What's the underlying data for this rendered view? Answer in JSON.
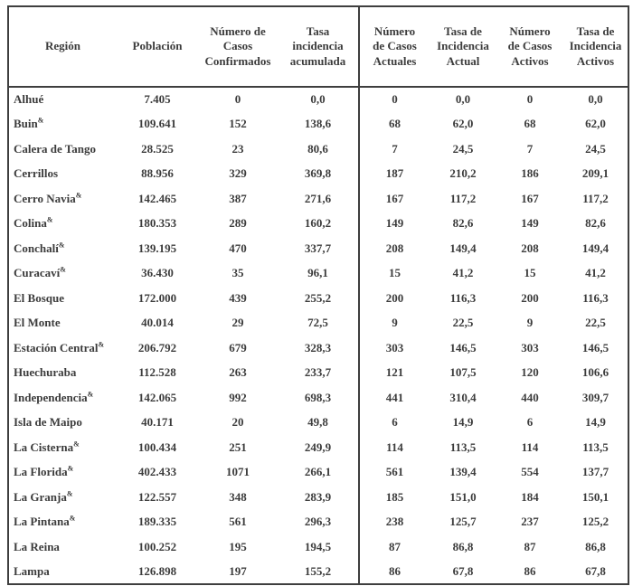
{
  "table": {
    "headers": [
      "Región",
      "Población",
      "Número de\nCasos\nConfirmados",
      "Tasa\nincidencia\nacumulada",
      "Número\nde Casos\nActuales",
      "Tasa de\nIncidencia\nActual",
      "Número\nde Casos\nActivos",
      "Tasa de\nIncidencia\nActivos"
    ],
    "rows": [
      {
        "region": "Alhué",
        "sup": "",
        "poblacion": "7.405",
        "confirmados": "0",
        "tasa_acumulada": "0,0",
        "actuales": "0",
        "tasa_actual": "0,0",
        "activos": "0",
        "tasa_activos": "0,0"
      },
      {
        "region": "Buin",
        "sup": "&",
        "poblacion": "109.641",
        "confirmados": "152",
        "tasa_acumulada": "138,6",
        "actuales": "68",
        "tasa_actual": "62,0",
        "activos": "68",
        "tasa_activos": "62,0"
      },
      {
        "region": "Calera de Tango",
        "sup": "",
        "poblacion": "28.525",
        "confirmados": "23",
        "tasa_acumulada": "80,6",
        "actuales": "7",
        "tasa_actual": "24,5",
        "activos": "7",
        "tasa_activos": "24,5"
      },
      {
        "region": "Cerrillos",
        "sup": "",
        "poblacion": "88.956",
        "confirmados": "329",
        "tasa_acumulada": "369,8",
        "actuales": "187",
        "tasa_actual": "210,2",
        "activos": "186",
        "tasa_activos": "209,1"
      },
      {
        "region": "Cerro Navia",
        "sup": "&",
        "poblacion": "142.465",
        "confirmados": "387",
        "tasa_acumulada": "271,6",
        "actuales": "167",
        "tasa_actual": "117,2",
        "activos": "167",
        "tasa_activos": "117,2"
      },
      {
        "region": "Colina",
        "sup": "&",
        "poblacion": "180.353",
        "confirmados": "289",
        "tasa_acumulada": "160,2",
        "actuales": "149",
        "tasa_actual": "82,6",
        "activos": "149",
        "tasa_activos": "82,6"
      },
      {
        "region": "Conchalí",
        "sup": "&",
        "poblacion": "139.195",
        "confirmados": "470",
        "tasa_acumulada": "337,7",
        "actuales": "208",
        "tasa_actual": "149,4",
        "activos": "208",
        "tasa_activos": "149,4"
      },
      {
        "region": "Curacaví",
        "sup": "&",
        "poblacion": "36.430",
        "confirmados": "35",
        "tasa_acumulada": "96,1",
        "actuales": "15",
        "tasa_actual": "41,2",
        "activos": "15",
        "tasa_activos": "41,2"
      },
      {
        "region": "El Bosque",
        "sup": "",
        "poblacion": "172.000",
        "confirmados": "439",
        "tasa_acumulada": "255,2",
        "actuales": "200",
        "tasa_actual": "116,3",
        "activos": "200",
        "tasa_activos": "116,3"
      },
      {
        "region": "El Monte",
        "sup": "",
        "poblacion": "40.014",
        "confirmados": "29",
        "tasa_acumulada": "72,5",
        "actuales": "9",
        "tasa_actual": "22,5",
        "activos": "9",
        "tasa_activos": "22,5"
      },
      {
        "region": "Estación Central",
        "sup": "&",
        "poblacion": "206.792",
        "confirmados": "679",
        "tasa_acumulada": "328,3",
        "actuales": "303",
        "tasa_actual": "146,5",
        "activos": "303",
        "tasa_activos": "146,5"
      },
      {
        "region": "Huechuraba",
        "sup": "",
        "poblacion": "112.528",
        "confirmados": "263",
        "tasa_acumulada": "233,7",
        "actuales": "121",
        "tasa_actual": "107,5",
        "activos": "120",
        "tasa_activos": "106,6"
      },
      {
        "region": "Independencia",
        "sup": "&",
        "poblacion": "142.065",
        "confirmados": "992",
        "tasa_acumulada": "698,3",
        "actuales": "441",
        "tasa_actual": "310,4",
        "activos": "440",
        "tasa_activos": "309,7"
      },
      {
        "region": "Isla de Maipo",
        "sup": "",
        "poblacion": "40.171",
        "confirmados": "20",
        "tasa_acumulada": "49,8",
        "actuales": "6",
        "tasa_actual": "14,9",
        "activos": "6",
        "tasa_activos": "14,9"
      },
      {
        "region": "La Cisterna",
        "sup": "&",
        "poblacion": "100.434",
        "confirmados": "251",
        "tasa_acumulada": "249,9",
        "actuales": "114",
        "tasa_actual": "113,5",
        "activos": "114",
        "tasa_activos": "113,5"
      },
      {
        "region": "La Florida",
        "sup": "&",
        "poblacion": "402.433",
        "confirmados": "1071",
        "tasa_acumulada": "266,1",
        "actuales": "561",
        "tasa_actual": "139,4",
        "activos": "554",
        "tasa_activos": "137,7"
      },
      {
        "region": "La Granja",
        "sup": "&",
        "poblacion": "122.557",
        "confirmados": "348",
        "tasa_acumulada": "283,9",
        "actuales": "185",
        "tasa_actual": "151,0",
        "activos": "184",
        "tasa_activos": "150,1"
      },
      {
        "region": "La Pintana",
        "sup": "&",
        "poblacion": "189.335",
        "confirmados": "561",
        "tasa_acumulada": "296,3",
        "actuales": "238",
        "tasa_actual": "125,7",
        "activos": "237",
        "tasa_activos": "125,2"
      },
      {
        "region": "La Reina",
        "sup": "",
        "poblacion": "100.252",
        "confirmados": "195",
        "tasa_acumulada": "194,5",
        "actuales": "87",
        "tasa_actual": "86,8",
        "activos": "87",
        "tasa_activos": "86,8"
      },
      {
        "region": "Lampa",
        "sup": "",
        "poblacion": "126.898",
        "confirmados": "197",
        "tasa_acumulada": "155,2",
        "actuales": "86",
        "tasa_actual": "67,8",
        "activos": "86",
        "tasa_activos": "67,8"
      }
    ]
  }
}
